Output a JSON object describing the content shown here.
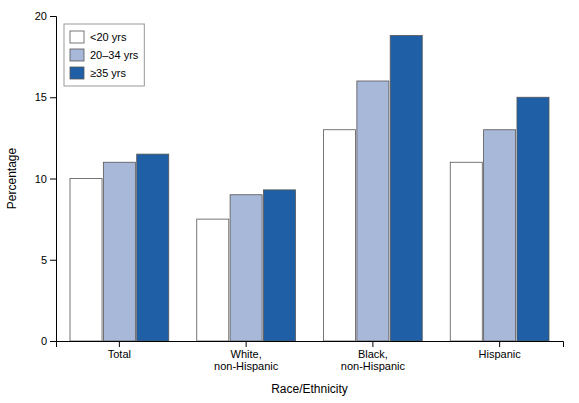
{
  "chart_data": {
    "type": "bar",
    "categories": [
      "Total",
      "White,\nnon-Hispanic",
      "Black,\nnon-Hispanic",
      "Hispanic"
    ],
    "series": [
      {
        "name": "<20 yrs",
        "color": "#ffffff",
        "values": [
          10.0,
          7.5,
          13.0,
          11.0
        ]
      },
      {
        "name": "20–34 yrs",
        "color": "#a8b8d8",
        "values": [
          11.0,
          9.0,
          16.0,
          13.0
        ]
      },
      {
        "name": "≥35 yrs",
        "color": "#1f5fa6",
        "values": [
          11.5,
          9.3,
          18.8,
          15.0
        ]
      }
    ],
    "xlabel": "Race/Ethnicity",
    "ylabel": "Percentage",
    "ylim": [
      0,
      20
    ],
    "yticks": [
      0,
      5,
      10,
      15,
      20
    ],
    "legend": "upper left",
    "grid": false
  }
}
